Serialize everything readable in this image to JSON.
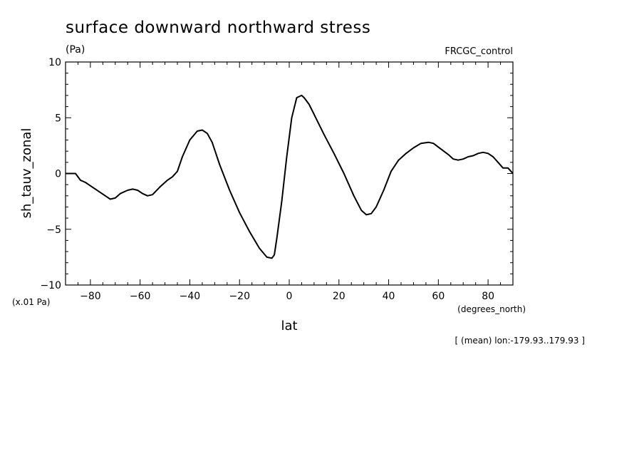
{
  "chart_data": {
    "type": "line",
    "title": "surface downward northward stress",
    "units_label": "(Pa)",
    "dataset_label": "FRCGC_control",
    "xlabel": "lat",
    "x_units_label": "(degrees_north)",
    "ylabel": "sh_tauv_zonal",
    "y_scale_label": "(x.01 Pa)",
    "footnote": "[ (mean) lon:-179.93..179.93 ]",
    "xlim": [
      -90,
      90
    ],
    "ylim": [
      -10,
      10
    ],
    "x_ticks": [
      "-80",
      "-60",
      "-40",
      "-20",
      "0",
      "20",
      "40",
      "60",
      "80"
    ],
    "y_ticks": [
      "10",
      "5",
      "0",
      "-5",
      "-10"
    ],
    "grid": false,
    "series": [
      {
        "x": [
          -90,
          -86,
          -84,
          -82,
          -78,
          -74,
          -72,
          -70,
          -68,
          -65,
          -63,
          -61,
          -59,
          -57,
          -55,
          -52,
          -49,
          -47,
          -45,
          -43,
          -40,
          -37,
          -35,
          -33,
          -31,
          -28,
          -24,
          -20,
          -16,
          -12,
          -9,
          -7,
          -6,
          -5,
          -3,
          -1,
          1,
          3,
          5,
          6,
          8,
          10,
          14,
          18,
          22,
          26,
          29,
          31,
          33,
          35,
          38,
          41,
          44,
          47,
          50,
          53,
          56,
          58,
          61,
          64,
          66,
          68,
          70,
          72,
          74,
          76,
          78,
          80,
          82,
          84,
          86,
          88,
          90
        ],
        "y": [
          0,
          0,
          -0.6,
          -0.8,
          -1.4,
          -2.0,
          -2.3,
          -2.2,
          -1.8,
          -1.5,
          -1.4,
          -1.5,
          -1.8,
          -2.0,
          -1.9,
          -1.2,
          -0.6,
          -0.3,
          0.2,
          1.5,
          3.0,
          3.8,
          3.9,
          3.6,
          2.8,
          0.8,
          -1.5,
          -3.5,
          -5.2,
          -6.7,
          -7.5,
          -7.6,
          -7.3,
          -5.8,
          -2.5,
          1.5,
          5.0,
          6.8,
          7.0,
          6.8,
          6.2,
          5.3,
          3.5,
          1.8,
          0.0,
          -2.0,
          -3.3,
          -3.7,
          -3.6,
          -3.0,
          -1.5,
          0.2,
          1.2,
          1.8,
          2.3,
          2.7,
          2.8,
          2.7,
          2.2,
          1.7,
          1.3,
          1.2,
          1.3,
          1.5,
          1.6,
          1.8,
          1.9,
          1.8,
          1.5,
          1.0,
          0.5,
          0.5,
          0.0
        ]
      }
    ]
  }
}
